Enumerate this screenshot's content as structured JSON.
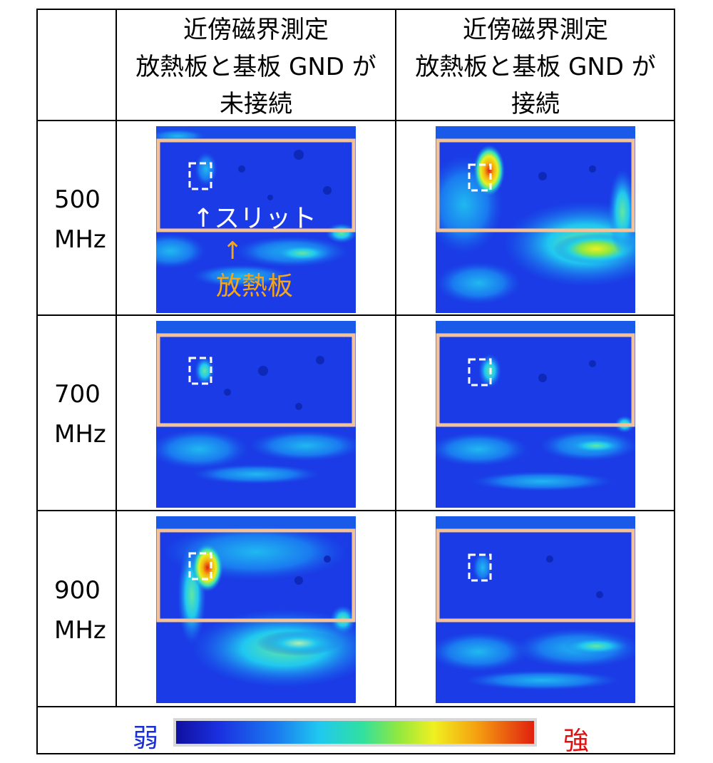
{
  "header": {
    "col1": [
      "近傍磁界測定",
      "放熱板と基板 GND が",
      "未接続"
    ],
    "col2": [
      "近傍磁界測定",
      "放熱板と基板 GND が",
      "接続"
    ]
  },
  "rows": [
    {
      "freq": "500",
      "unit": "MHz"
    },
    {
      "freq": "700",
      "unit": "MHz"
    },
    {
      "freq": "900",
      "unit": "MHz"
    }
  ],
  "annotations": {
    "slit": "↑スリット",
    "heatsink_arrow": "↑",
    "heatsink": "放熱板"
  },
  "legend": {
    "weak": "弱",
    "strong": "強",
    "colors": [
      "#1010a0",
      "#1a30e0",
      "#1a7af0",
      "#20c8f0",
      "#30e0a0",
      "#90e840",
      "#f0f020",
      "#f5a010",
      "#e02010"
    ]
  },
  "colors": {
    "map_base": "#1a3be6",
    "board_outline": "#f2c29a",
    "slit_marker": "#ffffff"
  }
}
